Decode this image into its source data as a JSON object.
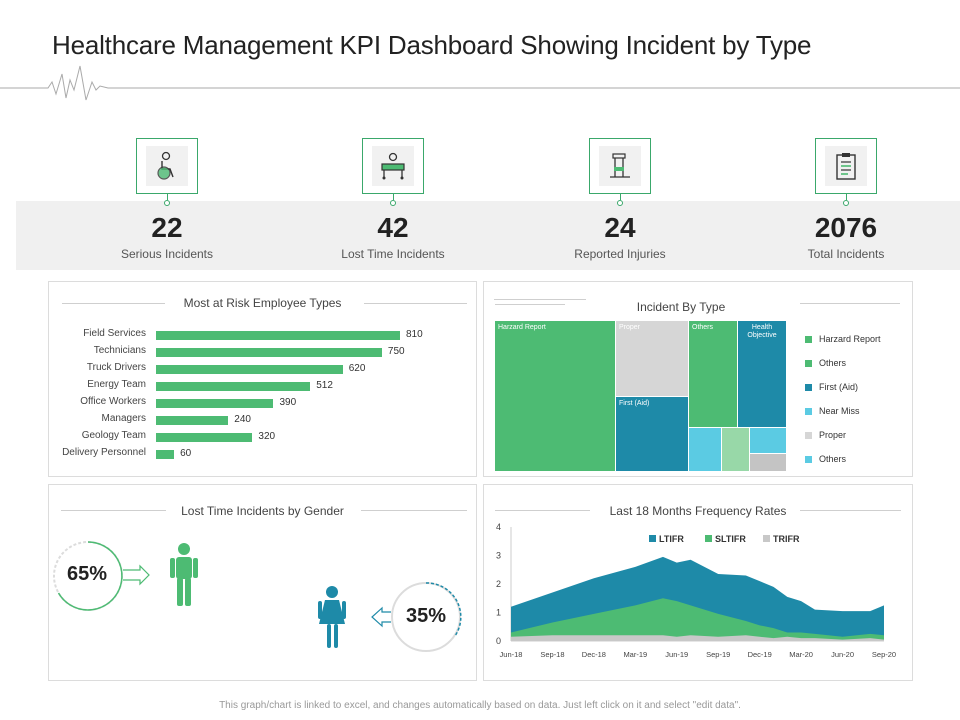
{
  "header": {
    "title": "Healthcare Management KPI Dashboard Showing Incident by Type"
  },
  "kpis": [
    {
      "value": "22",
      "label": "Serious Incidents",
      "icon": "wheelchair-icon"
    },
    {
      "value": "42",
      "label": "Lost Time Incidents",
      "icon": "hospital-bed-icon"
    },
    {
      "value": "24",
      "label": "Reported Injuries",
      "icon": "walker-icon"
    },
    {
      "value": "2076",
      "label": "Total Incidents",
      "icon": "clipboard-icon"
    }
  ],
  "panels": {
    "risk_title": "Most at Risk Employee Types",
    "type_title": "Incident By Type",
    "gender_title": "Lost Time Incidents by Gender",
    "freq_title": "Last 18 Months Frequency Rates"
  },
  "gender": {
    "male": "65%",
    "female": "35%",
    "male_pct": 65,
    "female_pct": 35
  },
  "treemap_labels": {
    "harzard": "Harzard Report",
    "proper": "Proper",
    "others": "Others",
    "health": "Health Objective",
    "first_aid": "First (Aid)"
  },
  "legend": [
    {
      "label": "Harzard Report",
      "color": "#4dbb73"
    },
    {
      "label": "Others",
      "color": "#4dbb73"
    },
    {
      "label": "First (Aid)",
      "color": "#1e8aa8"
    },
    {
      "label": "Near Miss",
      "color": "#5bcbe3"
    },
    {
      "label": "Proper",
      "color": "#d6d6d6"
    },
    {
      "label": "Others",
      "color": "#5bcbe3"
    }
  ],
  "footer": "This graph/chart is linked to excel, and changes automatically based on data. Just left click on it and select \"edit data\".",
  "chart_data": [
    {
      "type": "bar",
      "orientation": "horizontal",
      "title": "Most at Risk Employee Types",
      "categories": [
        "Field Services",
        "Technicians",
        "Truck Drivers",
        "Energy Team",
        "Office Workers",
        "Managers",
        "Geology Team",
        "Delivery Personnel"
      ],
      "values": [
        810,
        750,
        620,
        512,
        390,
        240,
        320,
        60
      ],
      "color": "#4dbb73"
    },
    {
      "type": "area",
      "title": "Last 18 Months Frequency Rates",
      "categories": [
        "Jun-18",
        "Sep-18",
        "Dec-18",
        "Mar-19",
        "Jun-19",
        "Sep-19",
        "Dec-19",
        "Mar-20",
        "Jun-20",
        "Sep-20"
      ],
      "ylim": [
        0,
        4
      ],
      "yticks": [
        "0",
        "1",
        "2",
        "3",
        "4"
      ],
      "x_positions": [
        0,
        3,
        6,
        9,
        12,
        15,
        18,
        21,
        24,
        27
      ],
      "series": [
        {
          "name": "LTIFR",
          "color": "#1e8aa8",
          "x": [
            0,
            3,
            6,
            9,
            11,
            12,
            13,
            15,
            17,
            18,
            19,
            20,
            21,
            22,
            24,
            26,
            27
          ],
          "values": [
            1.2,
            1.7,
            2.2,
            2.6,
            2.95,
            2.75,
            2.85,
            2.35,
            2.3,
            2.1,
            1.9,
            1.55,
            1.4,
            1.1,
            1.05,
            1.05,
            1.25
          ]
        },
        {
          "name": "SLTIFR",
          "color": "#4dbb73",
          "x": [
            0,
            3,
            6,
            9,
            11,
            12,
            13,
            15,
            17,
            18,
            19,
            20,
            21,
            22,
            24,
            26,
            27
          ],
          "values": [
            0.3,
            0.65,
            0.95,
            1.25,
            1.5,
            1.4,
            1.25,
            0.95,
            0.7,
            0.55,
            0.45,
            0.3,
            0.3,
            0.25,
            0.15,
            0.25,
            0.2
          ]
        },
        {
          "name": "TRIFR",
          "color": "#c8c8c8",
          "x": [
            0,
            3,
            6,
            9,
            11,
            12,
            13,
            15,
            17,
            18,
            19,
            20,
            21,
            22,
            24,
            26,
            27
          ],
          "values": [
            0.15,
            0.2,
            0.2,
            0.2,
            0.2,
            0.15,
            0.2,
            0.15,
            0.2,
            0.15,
            0.1,
            0.15,
            0.1,
            0.1,
            0.05,
            0.1,
            0.05
          ]
        }
      ]
    }
  ]
}
